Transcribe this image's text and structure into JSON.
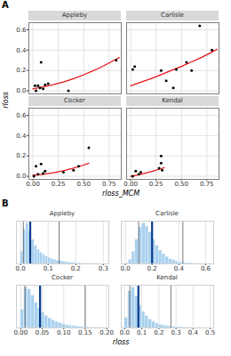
{
  "chart_data": [
    {
      "type": "scatter",
      "title": "A",
      "x_label": "rloss_MCM",
      "y_label": "rloss",
      "xlim": [
        -0.04,
        0.87
      ],
      "ylim": [
        -0.03,
        0.67
      ],
      "xticks": [
        {
          "value": 0,
          "label": "0.00"
        },
        0.25,
        {
          "value": 0.5,
          "label": "0.50"
        },
        0.75
      ],
      "yticks": [
        {
          "value": 0,
          "label": "0.0"
        },
        0.2,
        0.4,
        0.6
      ],
      "grid": true,
      "color": "#000000",
      "facets": [
        {
          "title": "Appleby",
          "tick_labels": "y",
          "x": [
            0.02,
            0.03,
            0.05,
            0.07,
            0.08,
            0.1,
            0.12,
            0.15,
            0.35,
            0.82
          ],
          "y": [
            0.05,
            0.0,
            0.05,
            0.03,
            0.28,
            0.02,
            0.06,
            0.07,
            0.0,
            0.3
          ],
          "fit": {
            "color": "#e8141a",
            "x": [
              0,
              0.1,
              0.2,
              0.3,
              0.4,
              0.5,
              0.6,
              0.7,
              0.8,
              0.85
            ],
            "y": [
              0.02,
              0.038,
              0.06,
              0.088,
              0.12,
              0.158,
              0.2,
              0.248,
              0.3,
              0.328
            ]
          }
        },
        {
          "title": "Carlisle",
          "tick_labels": false,
          "x": [
            0.02,
            0.04,
            0.3,
            0.35,
            0.42,
            0.45,
            0.55,
            0.6,
            0.68,
            0.8
          ],
          "y": [
            0.21,
            0.24,
            0.2,
            0.1,
            0.03,
            0.21,
            0.28,
            0.2,
            0.64,
            0.4
          ],
          "fit": {
            "color": "#e8141a",
            "x": [
              0,
              0.1,
              0.2,
              0.3,
              0.4,
              0.5,
              0.6,
              0.7,
              0.8,
              0.85
            ],
            "y": [
              0.05,
              0.085,
              0.12,
              0.16,
              0.2,
              0.24,
              0.285,
              0.33,
              0.38,
              0.41
            ]
          }
        },
        {
          "title": "Cocker",
          "x": [
            0.01,
            0.03,
            0.05,
            0.08,
            0.1,
            0.12,
            0.3,
            0.4,
            0.45,
            0.55
          ],
          "y": [
            0.0,
            0.1,
            0.02,
            0.12,
            0.03,
            0.05,
            0.04,
            0.06,
            0.1,
            0.28
          ],
          "fit": {
            "color": "#e8141a",
            "x": [
              0,
              0.1,
              0.2,
              0.3,
              0.4,
              0.5,
              0.55
            ],
            "y": [
              0.01,
              0.02,
              0.035,
              0.055,
              0.08,
              0.11,
              0.128
            ]
          }
        },
        {
          "title": "Kendal",
          "tick_labels": "x",
          "x": [
            0.02,
            0.05,
            0.08,
            0.1,
            0.28,
            0.3,
            0.3,
            0.31
          ],
          "y": [
            0.0,
            0.05,
            0.02,
            0.04,
            0.08,
            0.13,
            0.2,
            0.06
          ],
          "fit": {
            "color": "#e8141a",
            "x": [
              0,
              0.1,
              0.2,
              0.3,
              0.33
            ],
            "y": [
              0.0,
              0.02,
              0.045,
              0.075,
              0.085
            ]
          }
        }
      ]
    },
    {
      "type": "histogram",
      "title": "B",
      "x_label": "rloss",
      "grid": true,
      "color": "#a9d1ef",
      "facets": [
        {
          "title": "Appleby",
          "tick_labels": "x",
          "xlim": [
            -0.015,
            0.32
          ],
          "ylim": [
            0,
            105
          ],
          "xticks": [
            {
              "value": 0,
              "label": "0.0"
            },
            0.1,
            0.2,
            0.3
          ],
          "bins": [
            0,
            0.01,
            0.02,
            0.03,
            0.04,
            0.05,
            0.06,
            0.07,
            0.08,
            0.09,
            0.1,
            0.11,
            0.12,
            0.13,
            0.14,
            0.15,
            0.16,
            0.17,
            0.18,
            0.19,
            0.2,
            0.21,
            0.22,
            0.23,
            0.24,
            0.25,
            0.26,
            0.27,
            0.28
          ],
          "counts": [
            30,
            85,
            100,
            80,
            60,
            45,
            35,
            28,
            22,
            18,
            15,
            12,
            10,
            8,
            7,
            6,
            5,
            4,
            3,
            3,
            2,
            2,
            1,
            1,
            1,
            1,
            0,
            1
          ],
          "vlines": [
            {
              "x": 0.035,
              "color": "#0b3c8c"
            },
            {
              "x": 0.01,
              "color": "#555555"
            },
            {
              "x": 0.14,
              "color": "#555555"
            }
          ]
        },
        {
          "title": "Carlisle",
          "tick_labels": "x",
          "xlim": [
            -0.03,
            0.66
          ],
          "ylim": [
            0,
            105
          ],
          "xticks": [
            {
              "value": 0,
              "label": "0.0"
            },
            0.2,
            0.4,
            0.6
          ],
          "bins": [
            0,
            0.025,
            0.05,
            0.075,
            0.1,
            0.125,
            0.15,
            0.175,
            0.2,
            0.225,
            0.25,
            0.275,
            0.3,
            0.325,
            0.35,
            0.375,
            0.4,
            0.425,
            0.45,
            0.475,
            0.5,
            0.525,
            0.55,
            0.575,
            0.6
          ],
          "counts": [
            2,
            10,
            30,
            60,
            90,
            100,
            92,
            78,
            60,
            45,
            33,
            24,
            17,
            12,
            9,
            6,
            4,
            3,
            2,
            2,
            1,
            1,
            0,
            1
          ],
          "vlines": [
            {
              "x": 0.2,
              "color": "#0b3c8c"
            },
            {
              "x": 0.1,
              "color": "#555555"
            },
            {
              "x": 0.43,
              "color": "#555555"
            }
          ]
        },
        {
          "title": "Cocker",
          "tick_labels": "x",
          "xlim": [
            -0.01,
            0.205
          ],
          "ylim": [
            0,
            105
          ],
          "xticks": [
            {
              "value": 0,
              "label": "0.00"
            },
            0.05,
            {
              "value": 0.1,
              "label": "0.10"
            },
            0.15,
            {
              "value": 0.2,
              "label": "0.20"
            }
          ],
          "bins": [
            0,
            0.008,
            0.016,
            0.024,
            0.032,
            0.04,
            0.048,
            0.056,
            0.064,
            0.072,
            0.08,
            0.088,
            0.096,
            0.104,
            0.112,
            0.12,
            0.128,
            0.136,
            0.144,
            0.152,
            0.16,
            0.168,
            0.176,
            0.184,
            0.192
          ],
          "counts": [
            45,
            100,
            95,
            80,
            62,
            48,
            38,
            30,
            24,
            19,
            15,
            12,
            9,
            7,
            6,
            5,
            4,
            3,
            2,
            2,
            1,
            1,
            1,
            1
          ],
          "vlines": [
            {
              "x": 0.045,
              "color": "#0b3c8c"
            },
            {
              "x": 0.01,
              "color": "#555555"
            },
            {
              "x": 0.15,
              "color": "#555555"
            }
          ]
        },
        {
          "title": "Kendal",
          "tick_labels": "x",
          "xlim": [
            -0.02,
            0.52
          ],
          "ylim": [
            0,
            105
          ],
          "xticks": [
            {
              "value": 0,
              "label": "0.0"
            },
            0.1,
            0.2,
            0.3,
            0.4,
            0.5
          ],
          "bins": [
            0,
            0.02,
            0.04,
            0.06,
            0.08,
            0.1,
            0.12,
            0.14,
            0.16,
            0.18,
            0.2,
            0.22,
            0.24,
            0.26,
            0.28,
            0.3,
            0.32,
            0.34,
            0.36,
            0.38,
            0.4,
            0.42,
            0.44
          ],
          "counts": [
            25,
            90,
            100,
            78,
            55,
            40,
            29,
            21,
            15,
            11,
            8,
            6,
            5,
            4,
            3,
            2,
            2,
            1,
            1,
            1,
            0,
            1
          ],
          "vlines": [
            {
              "x": 0.08,
              "color": "#0b3c8c"
            },
            {
              "x": 0.03,
              "color": "#555555"
            },
            {
              "x": 0.27,
              "color": "#555555"
            }
          ]
        }
      ]
    }
  ]
}
